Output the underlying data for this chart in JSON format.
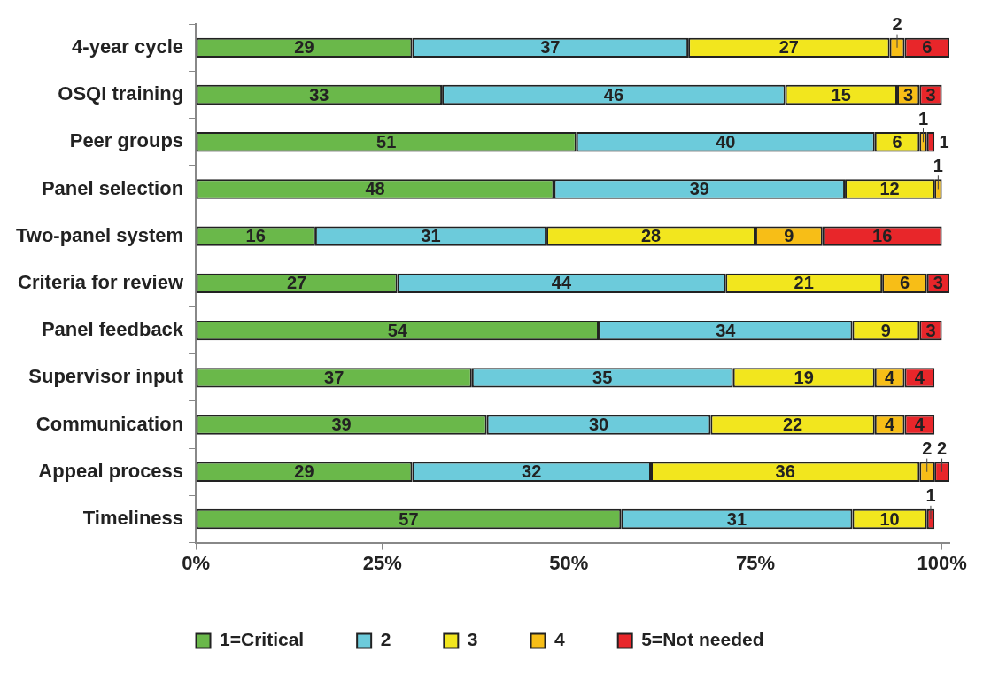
{
  "chart_data": {
    "type": "bar",
    "orientation": "horizontal",
    "stacked": true,
    "categories": [
      "4-year cycle",
      "OSQI training",
      "Peer groups",
      "Panel selection",
      "Two-panel system",
      "Criteria for review",
      "Panel feedback",
      "Supervisor input",
      "Communication",
      "Appeal process",
      "Timeliness"
    ],
    "series": [
      {
        "name": "1=Critical",
        "color": "#6ab84a",
        "values": [
          29,
          33,
          51,
          48,
          16,
          27,
          54,
          37,
          39,
          29,
          57
        ]
      },
      {
        "name": "2",
        "color": "#6ccbdb",
        "values": [
          37,
          46,
          40,
          39,
          31,
          44,
          34,
          35,
          30,
          32,
          31
        ]
      },
      {
        "name": "3",
        "color": "#f2e61e",
        "values": [
          27,
          15,
          6,
          12,
          28,
          21,
          9,
          19,
          22,
          36,
          10
        ]
      },
      {
        "name": "4",
        "color": "#f7be17",
        "values": [
          2,
          3,
          1,
          1,
          9,
          6,
          null,
          4,
          4,
          2,
          null
        ]
      },
      {
        "name": "5=Not needed",
        "color": "#e8262a",
        "values": [
          6,
          3,
          1,
          null,
          16,
          3,
          3,
          4,
          4,
          2,
          1
        ]
      }
    ],
    "xlim": [
      0,
      101
    ],
    "xticks": [
      {
        "value": 0,
        "label": "0%"
      },
      {
        "value": 25,
        "label": "25%"
      },
      {
        "value": 50,
        "label": "50%"
      },
      {
        "value": 75,
        "label": "75%"
      },
      {
        "value": 100,
        "label": "100%"
      }
    ],
    "data_labels": true,
    "grid": false,
    "legend": "bottom"
  }
}
